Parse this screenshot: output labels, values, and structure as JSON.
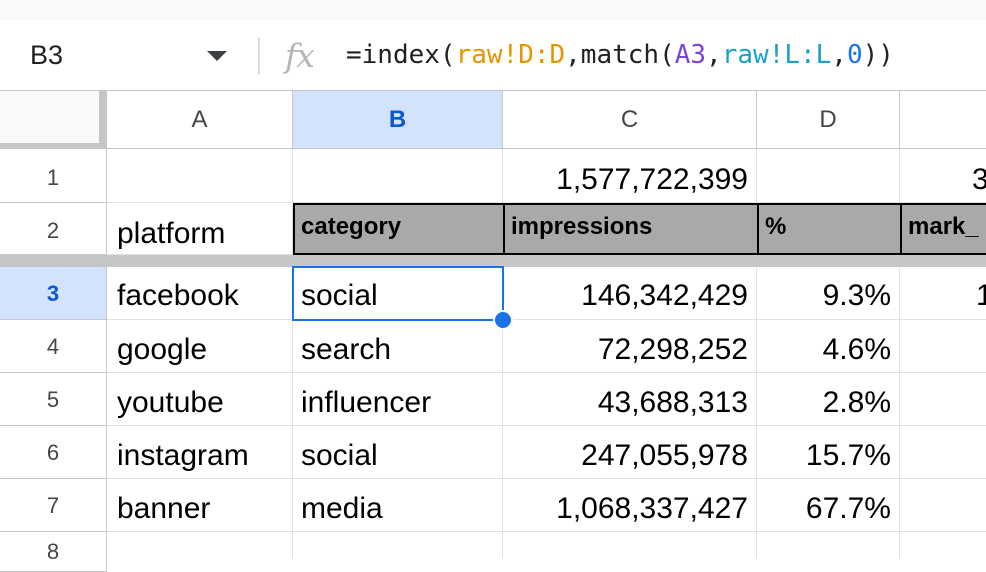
{
  "formula_bar": {
    "cell_ref": "B3",
    "fx_label": "fx",
    "formula_parts": [
      "=index(",
      "raw!D:D",
      ",match(",
      "A3",
      ",",
      "raw!L:L",
      ",",
      "0",
      "))"
    ]
  },
  "columns": [
    "A",
    "B",
    "C",
    "D"
  ],
  "rows": [
    "1",
    "2",
    "3",
    "4",
    "5",
    "6",
    "7",
    "8"
  ],
  "row1": {
    "c": "1,577,722,399",
    "e_partial": "3"
  },
  "row2": {
    "a": "platform",
    "headers": [
      "category",
      "impressions",
      "%",
      "mark_"
    ]
  },
  "data": [
    {
      "platform": "facebook",
      "category": "social",
      "impressions": "146,342,429",
      "pct": "9.3%",
      "e": "1"
    },
    {
      "platform": "google",
      "category": "search",
      "impressions": "72,298,252",
      "pct": "4.6%"
    },
    {
      "platform": "youtube",
      "category": "influencer",
      "impressions": "43,688,313",
      "pct": "2.8%"
    },
    {
      "platform": "instagram",
      "category": "social",
      "impressions": "247,055,978",
      "pct": "15.7%"
    },
    {
      "platform": "banner",
      "category": "media",
      "impressions": "1,068,337,427",
      "pct": "67.7%"
    }
  ],
  "selection": {
    "cell": "B3",
    "accent": "#1a73e8",
    "header_highlight": "#d3e3fd"
  }
}
